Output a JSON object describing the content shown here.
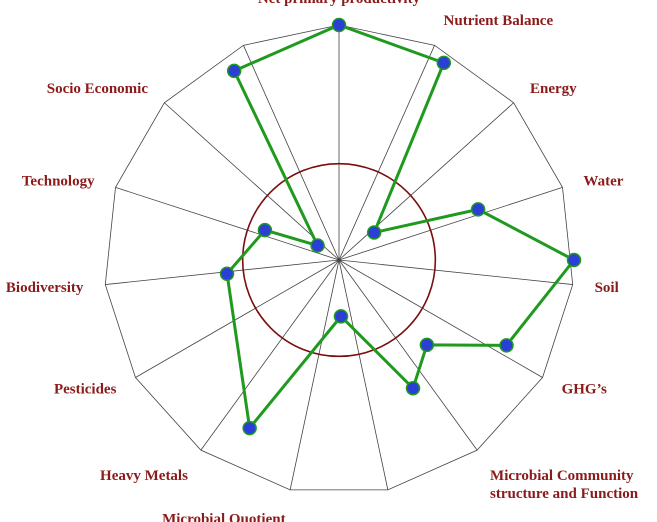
{
  "chart_data": {
    "type": "radar",
    "title": "",
    "axes": [
      "Net primary productivity",
      "Nutrient Balance",
      "Energy",
      "Water",
      "Soil",
      "GHG’s",
      "Microbial Community structure and Function",
      "",
      "Microbial Quotient",
      "Heavy Metals",
      "Pesticides",
      "Biodiversity",
      "Technology",
      "Socio Economic",
      ""
    ],
    "axis_label_lines": [
      [
        "Net primary productivity"
      ],
      [
        "Nutrient Balance"
      ],
      [
        "Energy"
      ],
      [
        "Water"
      ],
      [
        "Soil"
      ],
      [
        "GHG’s"
      ],
      [
        "Microbial Community",
        "structure and Function"
      ],
      [],
      [
        "Microbial Quotient"
      ],
      [
        "Heavy Metals"
      ],
      [
        "Pesticides"
      ],
      [
        "Biodiversity"
      ],
      [
        "Technology"
      ],
      [
        "Socio Economic"
      ],
      []
    ],
    "series": [
      {
        "name": "",
        "color": "#1f9a1f",
        "marker_color": "#2b3fd6",
        "points": [
          {
            "angle_deg": 0,
            "value": 1.0
          },
          {
            "angle_deg": 28,
            "value": 0.95
          },
          {
            "angle_deg": 52,
            "value": 0.19
          },
          {
            "angle_deg": 70,
            "value": 0.63
          },
          {
            "angle_deg": 90,
            "value": 1.0
          },
          {
            "angle_deg": 117,
            "value": 0.8
          },
          {
            "angle_deg": 134,
            "value": 0.52
          },
          {
            "angle_deg": 150,
            "value": 0.63
          },
          {
            "angle_deg": 178,
            "value": 0.24
          },
          {
            "angle_deg": 208,
            "value": 0.81
          },
          {
            "angle_deg": 263,
            "value": 0.48
          },
          {
            "angle_deg": 292,
            "value": 0.34
          },
          {
            "angle_deg": 304,
            "value": 0.11
          },
          {
            "angle_deg": 331,
            "value": 0.92
          }
        ]
      }
    ],
    "reference_circle": {
      "value": 0.41,
      "color": "#7a0e0e"
    },
    "scale_max": 1,
    "grid": true,
    "grid_shape": "polygon",
    "legend": "none"
  }
}
